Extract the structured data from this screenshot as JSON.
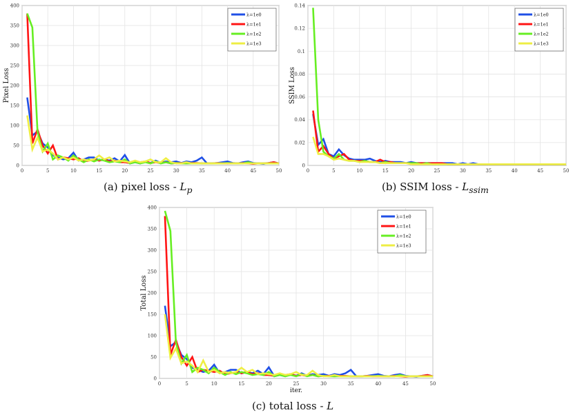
{
  "captions": [
    {
      "text": "(a) pixel loss - ",
      "math": "L",
      "sub": "p"
    },
    {
      "text": "(b) SSIM loss - ",
      "math": "L",
      "sub": "ssim"
    },
    {
      "text": "(c) total loss - ",
      "math": "L",
      "sub": ""
    }
  ],
  "series_colors": [
    "#1f4fe6",
    "#ff1414",
    "#66ee22",
    "#eeee44"
  ],
  "chart_data": [
    {
      "type": "line",
      "title": "",
      "xlabel": "",
      "ylabel": "Pixel Loss",
      "xlim": [
        0,
        50
      ],
      "ylim": [
        0,
        400
      ],
      "xticks": [
        0,
        5,
        10,
        15,
        20,
        25,
        30,
        35,
        40,
        45,
        50
      ],
      "yticks": [
        0,
        50,
        100,
        150,
        200,
        250,
        300,
        350,
        400
      ],
      "grid": true,
      "legend": "top-right",
      "x": [
        1,
        2,
        3,
        4,
        5,
        6,
        7,
        8,
        9,
        10,
        11,
        12,
        13,
        14,
        15,
        16,
        17,
        18,
        19,
        20,
        21,
        22,
        23,
        24,
        25,
        26,
        27,
        28,
        29,
        30,
        31,
        32,
        33,
        34,
        35,
        36,
        37,
        38,
        39,
        40,
        41,
        42,
        43,
        44,
        45,
        46,
        47,
        48,
        49,
        50
      ],
      "series": [
        {
          "name": "λ=1e0",
          "values": [
            170,
            75,
            85,
            55,
            45,
            25,
            20,
            15,
            18,
            32,
            12,
            15,
            20,
            20,
            12,
            15,
            12,
            18,
            10,
            26,
            5,
            8,
            5,
            10,
            6,
            12,
            6,
            10,
            8,
            10,
            6,
            10,
            8,
            12,
            20,
            5,
            5,
            6,
            8,
            10,
            6,
            5,
            8,
            10,
            6,
            5,
            4,
            6,
            8,
            5
          ]
        },
        {
          "name": "λ=1e1",
          "values": [
            380,
            55,
            90,
            50,
            30,
            50,
            15,
            20,
            18,
            15,
            18,
            10,
            12,
            15,
            12,
            15,
            10,
            12,
            8,
            8,
            6,
            10,
            8,
            10,
            6,
            8,
            6,
            8,
            5,
            6,
            6,
            5,
            6,
            6,
            5,
            5,
            5,
            6,
            5,
            5,
            5,
            5,
            6,
            5,
            4,
            5,
            5,
            6,
            8,
            5
          ]
        },
        {
          "name": "λ=1e2",
          "values": [
            380,
            345,
            85,
            35,
            55,
            15,
            25,
            20,
            12,
            25,
            15,
            8,
            15,
            10,
            15,
            12,
            8,
            10,
            8,
            15,
            5,
            8,
            5,
            8,
            5,
            10,
            5,
            8,
            5,
            6,
            5,
            5,
            5,
            5,
            5,
            5,
            5,
            5,
            5,
            6,
            5,
            5,
            5,
            8,
            5,
            5,
            5,
            5,
            5,
            5
          ]
        },
        {
          "name": "λ=1e3",
          "values": [
            125,
            40,
            70,
            35,
            40,
            30,
            15,
            20,
            15,
            20,
            12,
            15,
            12,
            15,
            25,
            15,
            20,
            10,
            12,
            10,
            8,
            12,
            8,
            10,
            15,
            8,
            8,
            18,
            8,
            5,
            5,
            8,
            5,
            5,
            5,
            5,
            5,
            5,
            5,
            5,
            5,
            5,
            5,
            5,
            5,
            5,
            5,
            5,
            5,
            5
          ]
        }
      ]
    },
    {
      "type": "line",
      "title": "",
      "xlabel": "",
      "ylabel": "SSIM Loss",
      "xlim": [
        0,
        50
      ],
      "ylim": [
        0,
        0.14
      ],
      "xticks": [
        0,
        5,
        10,
        15,
        20,
        25,
        30,
        35,
        40,
        45,
        50
      ],
      "yticks": [
        0,
        0.02,
        0.04,
        0.06,
        0.08,
        0.1,
        0.12,
        0.14
      ],
      "grid": true,
      "legend": "top-right",
      "x": [
        1,
        2,
        3,
        4,
        5,
        6,
        7,
        8,
        9,
        10,
        11,
        12,
        13,
        14,
        15,
        16,
        17,
        18,
        19,
        20,
        21,
        22,
        23,
        24,
        25,
        26,
        27,
        28,
        29,
        30,
        31,
        32,
        33,
        34,
        35,
        36,
        37,
        38,
        39,
        40,
        41,
        42,
        43,
        44,
        45,
        46,
        47,
        48,
        49,
        50
      ],
      "series": [
        {
          "name": "λ=1e0",
          "values": [
            0.045,
            0.018,
            0.023,
            0.01,
            0.008,
            0.014,
            0.009,
            0.006,
            0.005,
            0.005,
            0.005,
            0.006,
            0.004,
            0.003,
            0.004,
            0.003,
            0.003,
            0.003,
            0.002,
            0.003,
            0.002,
            0.002,
            0.002,
            0.002,
            0.002,
            0.002,
            0.002,
            0.002,
            0.001,
            0.002,
            0.001,
            0.002,
            0.001,
            0.001,
            0.001,
            0.001,
            0.001,
            0.001,
            0.001,
            0.001,
            0.001,
            0.001,
            0.001,
            0.001,
            0.001,
            0.001,
            0.001,
            0.001,
            0.001,
            0.001
          ]
        },
        {
          "name": "λ=1e1",
          "values": [
            0.048,
            0.012,
            0.017,
            0.01,
            0.006,
            0.008,
            0.01,
            0.005,
            0.004,
            0.004,
            0.004,
            0.003,
            0.003,
            0.005,
            0.003,
            0.003,
            0.002,
            0.002,
            0.002,
            0.002,
            0.002,
            0.002,
            0.002,
            0.002,
            0.002,
            0.002,
            0.001,
            0.001,
            0.001,
            0.001,
            0.001,
            0.001,
            0.001,
            0.001,
            0.001,
            0.001,
            0.001,
            0.001,
            0.001,
            0.001,
            0.001,
            0.001,
            0.001,
            0.001,
            0.001,
            0.001,
            0.001,
            0.001,
            0.001,
            0.001
          ]
        },
        {
          "name": "λ=1e2",
          "values": [
            0.138,
            0.04,
            0.012,
            0.008,
            0.006,
            0.01,
            0.005,
            0.004,
            0.004,
            0.003,
            0.004,
            0.003,
            0.003,
            0.002,
            0.003,
            0.002,
            0.002,
            0.002,
            0.002,
            0.002,
            0.002,
            0.001,
            0.002,
            0.001,
            0.001,
            0.001,
            0.001,
            0.001,
            0.001,
            0.001,
            0.001,
            0.001,
            0.001,
            0.001,
            0.001,
            0.001,
            0.001,
            0.001,
            0.001,
            0.001,
            0.001,
            0.001,
            0.001,
            0.001,
            0.001,
            0.001,
            0.001,
            0.001,
            0.001,
            0.001
          ]
        },
        {
          "name": "λ=1e3",
          "values": [
            0.025,
            0.01,
            0.01,
            0.008,
            0.005,
            0.006,
            0.005,
            0.004,
            0.004,
            0.003,
            0.003,
            0.003,
            0.003,
            0.002,
            0.002,
            0.002,
            0.002,
            0.002,
            0.002,
            0.001,
            0.001,
            0.001,
            0.001,
            0.001,
            0.001,
            0.001,
            0.001,
            0.001,
            0.001,
            0.001,
            0.001,
            0.001,
            0.001,
            0.001,
            0.001,
            0.001,
            0.001,
            0.001,
            0.001,
            0.001,
            0.001,
            0.001,
            0.001,
            0.001,
            0.001,
            0.001,
            0.001,
            0.001,
            0.001,
            0.001
          ]
        }
      ]
    },
    {
      "type": "line",
      "title": "",
      "xlabel": "iter.",
      "ylabel": "Total Loss",
      "xlim": [
        0,
        50
      ],
      "ylim": [
        0,
        400
      ],
      "xticks": [
        0,
        5,
        10,
        15,
        20,
        25,
        30,
        35,
        40,
        45,
        50
      ],
      "yticks": [
        0,
        50,
        100,
        150,
        200,
        250,
        300,
        350,
        400
      ],
      "grid": true,
      "legend": "top-right",
      "x": [
        1,
        2,
        3,
        4,
        5,
        6,
        7,
        8,
        9,
        10,
        11,
        12,
        13,
        14,
        15,
        16,
        17,
        18,
        19,
        20,
        21,
        22,
        23,
        24,
        25,
        26,
        27,
        28,
        29,
        30,
        31,
        32,
        33,
        34,
        35,
        36,
        37,
        38,
        39,
        40,
        41,
        42,
        43,
        44,
        45,
        46,
        47,
        48,
        49,
        50
      ],
      "series": [
        {
          "name": "λ=1e0",
          "values": [
            170,
            75,
            85,
            55,
            45,
            25,
            20,
            15,
            18,
            32,
            12,
            15,
            20,
            20,
            12,
            15,
            12,
            18,
            10,
            26,
            5,
            8,
            5,
            10,
            6,
            12,
            6,
            10,
            8,
            10,
            6,
            10,
            8,
            12,
            20,
            5,
            5,
            6,
            8,
            10,
            6,
            5,
            8,
            10,
            6,
            5,
            4,
            6,
            8,
            5
          ]
        },
        {
          "name": "λ=1e1",
          "values": [
            380,
            55,
            90,
            50,
            30,
            50,
            15,
            20,
            18,
            15,
            18,
            10,
            12,
            15,
            12,
            15,
            10,
            12,
            8,
            8,
            6,
            10,
            8,
            10,
            6,
            8,
            6,
            8,
            5,
            6,
            6,
            5,
            6,
            6,
            5,
            5,
            5,
            6,
            5,
            5,
            5,
            5,
            6,
            5,
            4,
            5,
            5,
            6,
            8,
            5
          ]
        },
        {
          "name": "λ=1e2",
          "values": [
            392,
            345,
            85,
            35,
            55,
            15,
            25,
            20,
            12,
            25,
            15,
            8,
            15,
            10,
            15,
            12,
            8,
            10,
            8,
            15,
            5,
            8,
            5,
            8,
            5,
            10,
            5,
            8,
            5,
            6,
            5,
            5,
            5,
            5,
            5,
            5,
            5,
            5,
            5,
            6,
            5,
            5,
            5,
            8,
            5,
            5,
            5,
            5,
            5,
            5
          ]
        },
        {
          "name": "λ=1e3",
          "values": [
            150,
            48,
            70,
            35,
            40,
            30,
            15,
            42,
            15,
            20,
            12,
            15,
            12,
            15,
            25,
            15,
            20,
            10,
            12,
            10,
            8,
            12,
            8,
            10,
            15,
            8,
            8,
            18,
            8,
            5,
            5,
            8,
            5,
            5,
            5,
            5,
            5,
            5,
            5,
            5,
            5,
            5,
            5,
            5,
            5,
            5,
            5,
            5,
            5,
            5
          ]
        }
      ]
    }
  ]
}
